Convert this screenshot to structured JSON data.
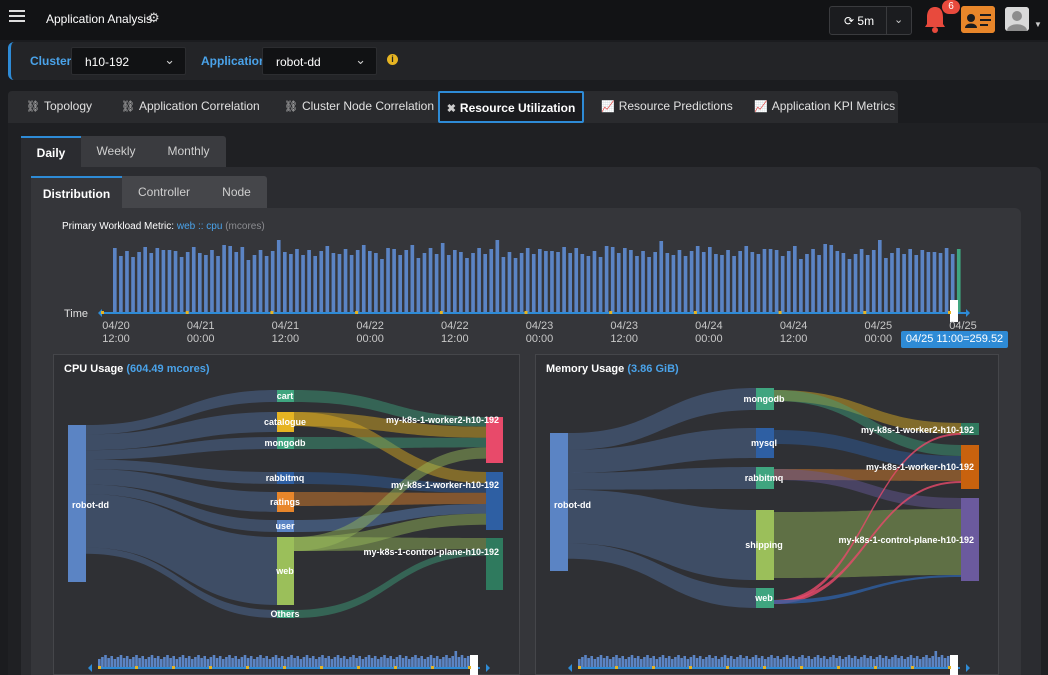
{
  "header": {
    "title": "Application Analysis",
    "refresh_label": "5m",
    "notification_count": "6"
  },
  "filters": {
    "cluster_label": "Cluster",
    "cluster_value": "h10-192",
    "application_label": "Application",
    "application_value": "robot-dd"
  },
  "main_tabs": [
    {
      "label": "Topology",
      "icon": "topology-icon"
    },
    {
      "label": "Application Correlation",
      "icon": "correlation-icon"
    },
    {
      "label": "Cluster Node Correlation",
      "icon": "node-correlation-icon"
    },
    {
      "label": "Resource Utilization",
      "icon": "tools-icon",
      "active": true
    },
    {
      "label": "Resource Predictions",
      "icon": "line-chart-icon"
    },
    {
      "label": "Application KPI Metrics",
      "icon": "line-chart-icon"
    }
  ],
  "period_tabs": [
    {
      "label": "Daily",
      "active": true
    },
    {
      "label": "Weekly"
    },
    {
      "label": "Monthly"
    }
  ],
  "sub_tabs": [
    {
      "label": "Distribution",
      "active": true
    },
    {
      "label": "Controller"
    },
    {
      "label": "Node"
    }
  ],
  "timeline": {
    "metric_prefix": "Primary Workload Metric:",
    "metric_name": "web :: cpu",
    "metric_unit": "(mcores)",
    "time_label": "Time",
    "ticks": [
      {
        "date": "04/20",
        "time": "12:00"
      },
      {
        "date": "04/21",
        "time": "00:00"
      },
      {
        "date": "04/21",
        "time": "12:00"
      },
      {
        "date": "04/22",
        "time": "00:00"
      },
      {
        "date": "04/22",
        "time": "12:00"
      },
      {
        "date": "04/23",
        "time": "00:00"
      },
      {
        "date": "04/23",
        "time": "12:00"
      },
      {
        "date": "04/24",
        "time": "00:00"
      },
      {
        "date": "04/24",
        "time": "12:00"
      },
      {
        "date": "04/25",
        "time": "00:00"
      },
      {
        "date": "04/25",
        "time": ""
      }
    ],
    "tooltip": "04/25 11:00=259.52"
  },
  "cpu_chart": {
    "title": "CPU Usage",
    "total": "(604.49 mcores)",
    "source": "robot-dd",
    "services": [
      "cart",
      "catalogue",
      "mongodb",
      "rabbitmq",
      "ratings",
      "user",
      "web",
      "Others"
    ],
    "nodes": [
      "my-k8s-1-worker2-h10-192",
      "my-k8s-1-worker-h10-192",
      "my-k8s-1-control-plane-h10-192"
    ]
  },
  "memory_chart": {
    "title": "Memory Usage",
    "total": "(3.86 GiB)",
    "source": "robot-dd",
    "services": [
      "mongodb",
      "mysql",
      "rabbitmq",
      "shipping",
      "web"
    ],
    "nodes": [
      "my-k8s-1-worker2-h10-192",
      "my-k8s-1-worker-h10-192",
      "my-k8s-1-control-plane-h10-192"
    ]
  },
  "colors": {
    "accent": "#2e8bd6",
    "bar": "#5b84c4",
    "notification": "#e84a3d",
    "contact_card": "#e8862a"
  }
}
